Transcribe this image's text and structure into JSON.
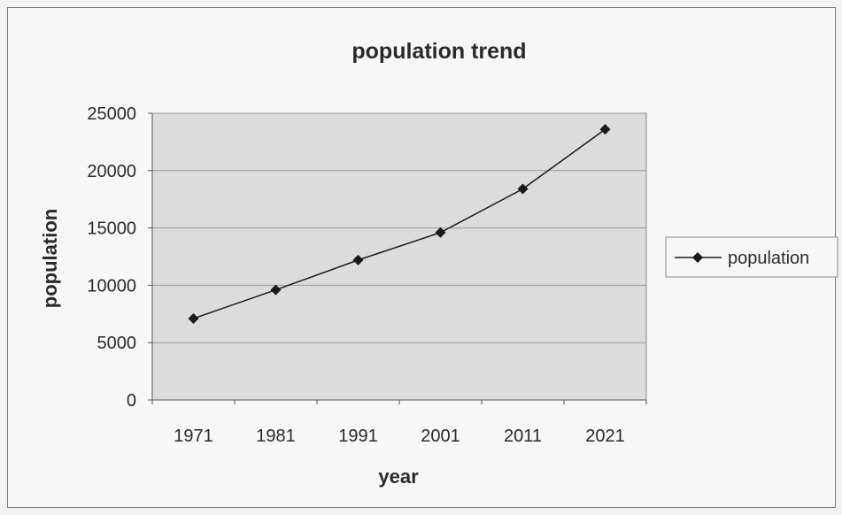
{
  "chart_data": {
    "type": "line",
    "title": "population trend",
    "xlabel": "year",
    "ylabel": "population",
    "categories": [
      "1971",
      "1981",
      "1991",
      "2001",
      "2011",
      "2021"
    ],
    "series": [
      {
        "name": "population",
        "values": [
          7100,
          9600,
          12200,
          14600,
          18400,
          23600
        ],
        "color": "#1a1a1a",
        "marker": "diamond"
      }
    ],
    "ylim": [
      0,
      25000
    ],
    "yticks": [
      "0",
      "5000",
      "10000",
      "15000",
      "20000",
      "25000"
    ],
    "grid": true,
    "legend": "right",
    "plot_background": "#dcdcdc"
  }
}
